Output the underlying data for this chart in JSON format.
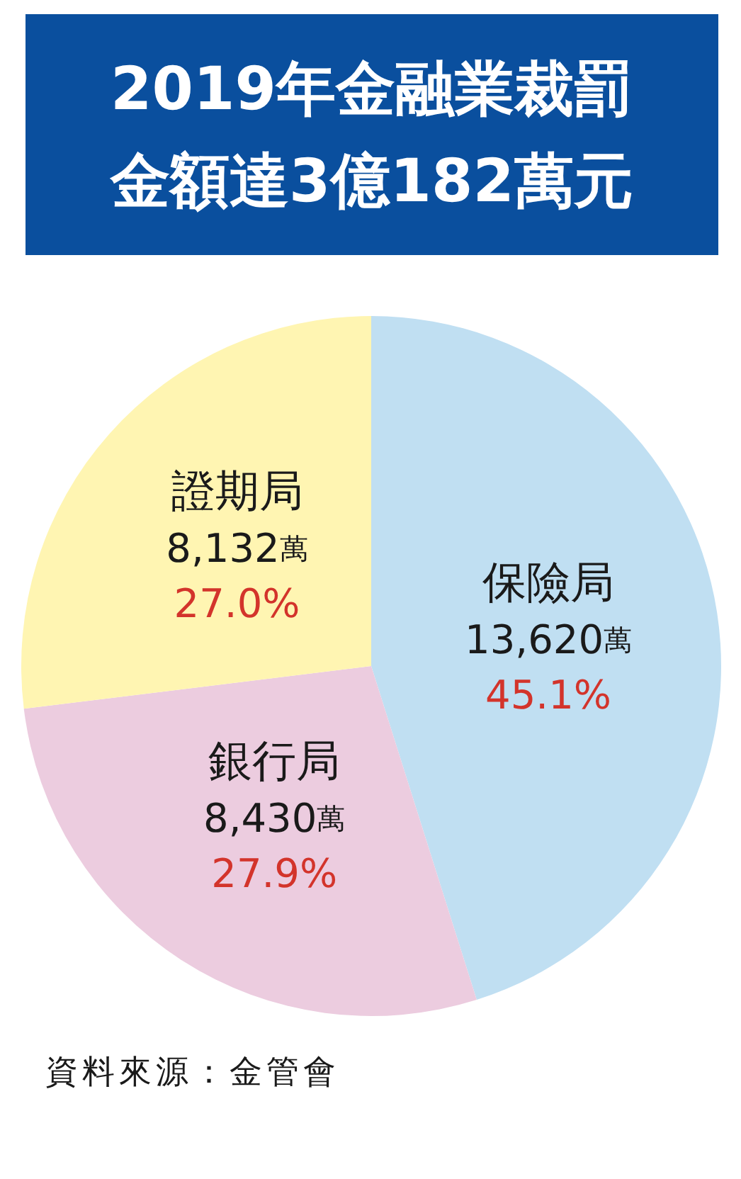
{
  "chart_data": {
    "type": "pie",
    "title": "2019年金融業裁罰金額達3億182萬元",
    "categories": [
      "保險局",
      "銀行局",
      "證期局"
    ],
    "values": [
      13620,
      8430,
      8132
    ],
    "colors": [
      "#c0dff2",
      "#ecccdf",
      "#fff5b2"
    ],
    "value_labels": [
      "13,620萬\n45.1%",
      "8,430萬\n27.9%",
      "8,132萬\n27.0%"
    ],
    "annotations": [
      "資料來源：金管會"
    ]
  }
}
